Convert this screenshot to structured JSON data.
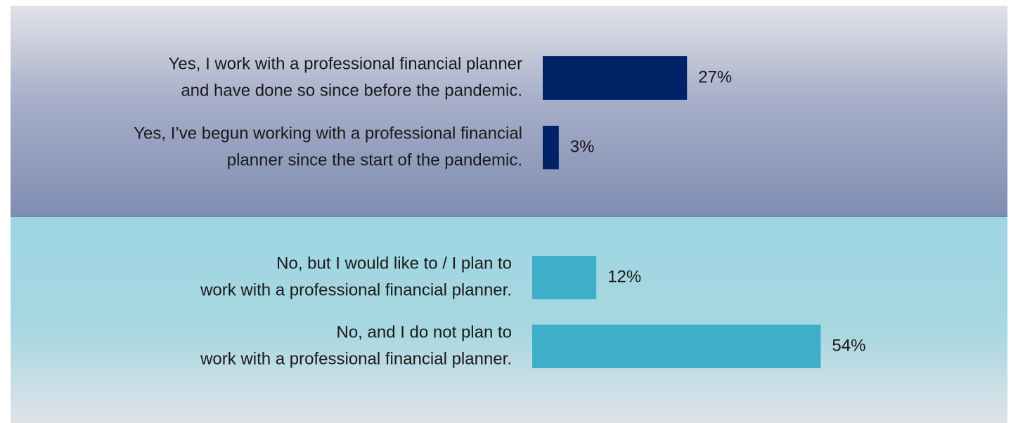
{
  "chart_data": [
    {
      "type": "bar",
      "orientation": "horizontal",
      "categories": [
        [
          "Yes, I work with a professional financial planner",
          "and have done so since before the pandemic."
        ],
        [
          "Yes, I’ve begun working with a professional financial",
          "planner since the start of the pandemic."
        ]
      ],
      "values": [
        27,
        3
      ],
      "value_labels": [
        "27%",
        "3%"
      ],
      "color": "#002266"
    },
    {
      "type": "bar",
      "orientation": "horizontal",
      "categories": [
        [
          "No, but I would like to / I plan to",
          "work with a professional financial planner."
        ],
        [
          "No, and I do not plan to",
          "work with a professional financial planner."
        ]
      ],
      "values": [
        12,
        54
      ],
      "value_labels": [
        "12%",
        "54%"
      ],
      "color": "#3eafc8"
    }
  ]
}
